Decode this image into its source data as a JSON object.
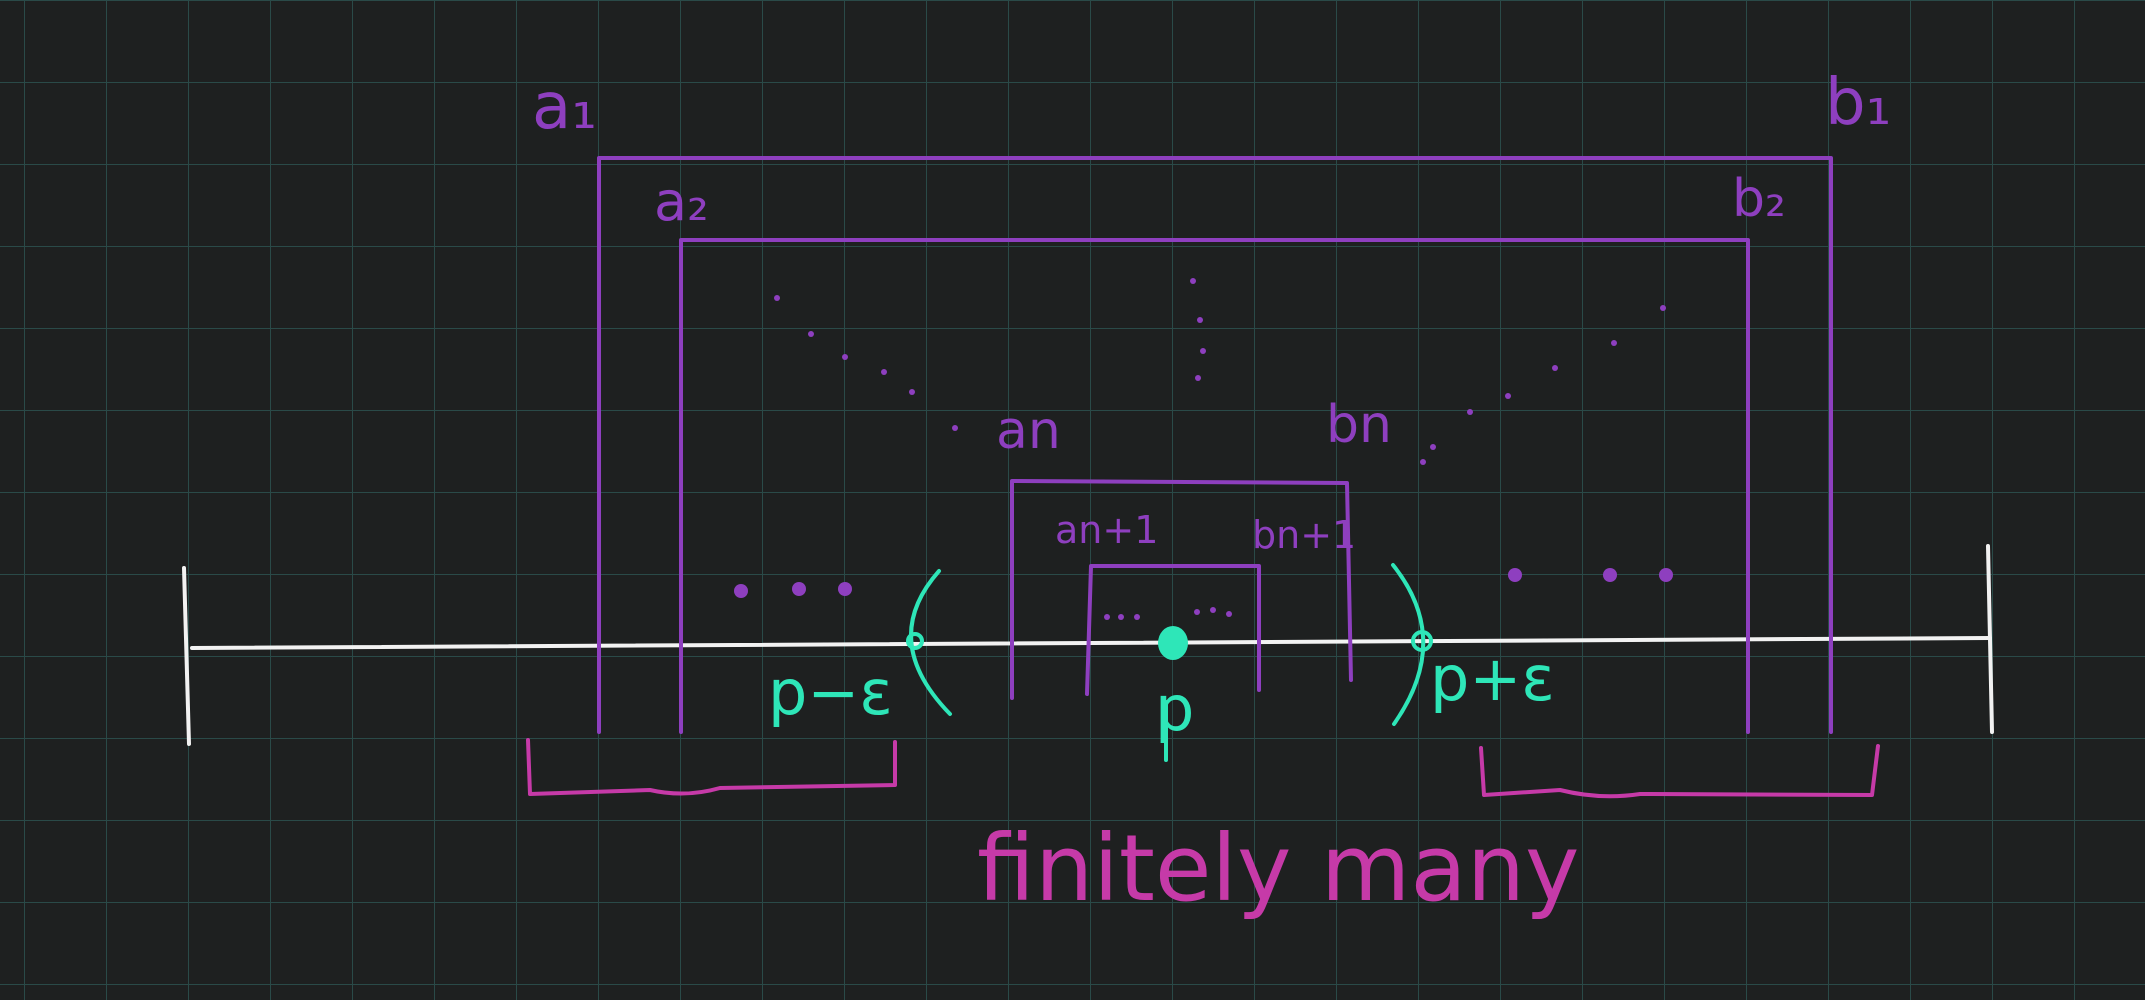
{
  "labels": {
    "a1": "a₁",
    "b1": "b₁",
    "a2": "a₂",
    "b2": "b₂",
    "an": "an",
    "bn": "bn",
    "an1": "an+1",
    "bn1": "bn+1",
    "p_minus_eps": "p−ε",
    "p": "p",
    "p_plus_eps": "p+ε",
    "finitely_many": "finitely many"
  },
  "colors": {
    "intervals": "#8e3fbf",
    "number_line": "#f2f2f2",
    "neighborhood": "#2ee6b8",
    "annotation": "#c63aa8",
    "background": "#1e2020"
  }
}
